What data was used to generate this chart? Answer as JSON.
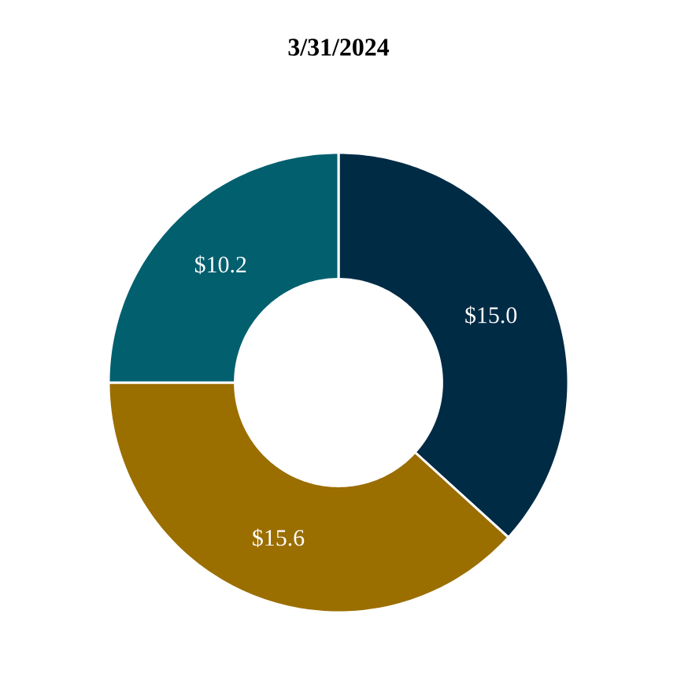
{
  "chart_data": {
    "type": "donut",
    "title": "3/31/2024",
    "categories": [
      null,
      null,
      null
    ],
    "values": [
      15.0,
      15.6,
      10.2
    ],
    "value_labels": [
      "$15.0",
      "$15.6",
      "$10.2"
    ],
    "colors": [
      "#002b45",
      "#9b6e00",
      "#015f6e"
    ]
  }
}
